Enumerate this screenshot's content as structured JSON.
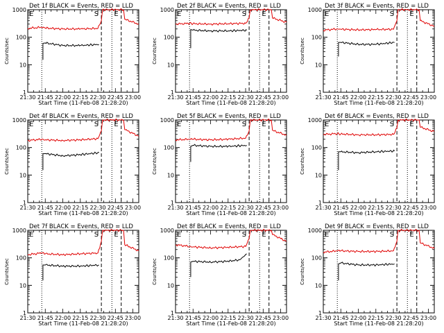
{
  "colors": {
    "events": "#000000",
    "lld": "#e00000",
    "axis": "#000000",
    "background": "#ffffff"
  },
  "chart_data": [
    {
      "type": "line",
      "title": "Det 1f BLACK = Events, RED = LLD",
      "xlabel": "Start Time (11-Feb-08 21:28:20)",
      "ylabel": "Counts/sec",
      "xlim": [
        "21:30",
        "23:05"
      ],
      "ylim": [
        1,
        1000
      ],
      "y_scale": "log",
      "x_ticks": [
        "21:30",
        "21:45",
        "22:00",
        "22:15",
        "22:30",
        "22:45",
        "23:00"
      ],
      "y_ticks": [
        "1",
        "10",
        "100",
        "1000"
      ],
      "markers": [
        {
          "time": "21:42",
          "style": "dotted",
          "label": ""
        },
        {
          "time": "22:33",
          "style": "dashed",
          "label": "S"
        },
        {
          "time": "22:42",
          "style": "dotted",
          "label": ""
        },
        {
          "time": "22:50",
          "style": "dashed",
          "label": "E"
        }
      ],
      "series": [
        {
          "name": "LLD",
          "color": "red",
          "x": [
            "21:30",
            "21:42",
            "21:45",
            "22:00",
            "22:15",
            "22:30",
            "22:33",
            "22:34",
            "22:52",
            "22:53",
            "23:05"
          ],
          "y": [
            210,
            230,
            215,
            200,
            200,
            210,
            400,
            1000,
            1000,
            450,
            300
          ]
        },
        {
          "name": "Events",
          "color": "black",
          "x": [
            "21:43",
            "21:43",
            "21:45",
            "22:00",
            "22:15",
            "22:31"
          ],
          "y": [
            15,
            60,
            62,
            50,
            50,
            55
          ]
        }
      ]
    },
    {
      "type": "line",
      "title": "Det 2f BLACK = Events, RED = LLD",
      "xlabel": "Start Time (11-Feb-08 21:28:20)",
      "ylabel": "Counts/sec",
      "xlim": [
        "21:30",
        "23:05"
      ],
      "ylim": [
        1,
        1000
      ],
      "y_scale": "log",
      "x_ticks": [
        "21:30",
        "21:45",
        "22:00",
        "22:15",
        "22:30",
        "22:45",
        "23:00"
      ],
      "y_ticks": [
        "1",
        "10",
        "100",
        "1000"
      ],
      "markers": [
        {
          "time": "21:42",
          "style": "dotted",
          "label": ""
        },
        {
          "time": "22:33",
          "style": "dashed",
          "label": "S"
        },
        {
          "time": "22:42",
          "style": "dotted",
          "label": ""
        },
        {
          "time": "22:50",
          "style": "dashed",
          "label": "E"
        }
      ],
      "series": [
        {
          "name": "LLD",
          "color": "red",
          "x": [
            "21:30",
            "21:42",
            "21:45",
            "22:00",
            "22:15",
            "22:30",
            "22:33",
            "22:34",
            "22:52",
            "22:53",
            "23:05"
          ],
          "y": [
            300,
            320,
            310,
            300,
            310,
            320,
            500,
            1000,
            1000,
            500,
            350
          ]
        },
        {
          "name": "Events",
          "color": "black",
          "x": [
            "21:43",
            "21:43",
            "21:45",
            "22:00",
            "22:15",
            "22:31"
          ],
          "y": [
            40,
            190,
            180,
            170,
            170,
            180
          ]
        }
      ]
    },
    {
      "type": "line",
      "title": "Det 3f BLACK = Events, RED = LLD",
      "xlabel": "Start Time (11-Feb-08 21:28:20)",
      "ylabel": "Counts/sec",
      "xlim": [
        "21:30",
        "23:05"
      ],
      "ylim": [
        1,
        1000
      ],
      "y_scale": "log",
      "x_ticks": [
        "21:30",
        "21:45",
        "22:00",
        "22:15",
        "22:30",
        "22:45",
        "23:00"
      ],
      "y_ticks": [
        "1",
        "10",
        "100",
        "1000"
      ],
      "markers": [
        {
          "time": "21:42",
          "style": "dotted",
          "label": ""
        },
        {
          "time": "22:33",
          "style": "dashed",
          "label": "S"
        },
        {
          "time": "22:42",
          "style": "dotted",
          "label": ""
        },
        {
          "time": "22:50",
          "style": "dashed",
          "label": "E"
        }
      ],
      "series": [
        {
          "name": "LLD",
          "color": "red",
          "x": [
            "21:30",
            "21:42",
            "21:45",
            "22:00",
            "22:15",
            "22:30",
            "22:33",
            "22:34",
            "22:52",
            "22:53",
            "23:05"
          ],
          "y": [
            180,
            200,
            195,
            185,
            190,
            195,
            400,
            1000,
            1000,
            400,
            250
          ]
        },
        {
          "name": "Events",
          "color": "black",
          "x": [
            "21:43",
            "21:43",
            "21:45",
            "22:00",
            "22:15",
            "22:31"
          ],
          "y": [
            20,
            65,
            65,
            55,
            55,
            65
          ]
        }
      ]
    },
    {
      "type": "line",
      "title": "Det 4f BLACK = Events, RED = LLD",
      "xlabel": "Start Time (11-Feb-08 21:28:20)",
      "ylabel": "Counts/sec",
      "xlim": [
        "21:30",
        "23:05"
      ],
      "ylim": [
        1,
        1000
      ],
      "y_scale": "log",
      "x_ticks": [
        "21:30",
        "21:45",
        "22:00",
        "22:15",
        "22:30",
        "22:45",
        "23:00"
      ],
      "y_ticks": [
        "1",
        "10",
        "100",
        "1000"
      ],
      "markers": [
        {
          "time": "21:42",
          "style": "dotted",
          "label": ""
        },
        {
          "time": "22:33",
          "style": "dashed",
          "label": "S"
        },
        {
          "time": "22:42",
          "style": "dotted",
          "label": ""
        },
        {
          "time": "22:50",
          "style": "dashed",
          "label": "E"
        }
      ],
      "series": [
        {
          "name": "LLD",
          "color": "red",
          "x": [
            "21:30",
            "21:42",
            "21:45",
            "22:00",
            "22:15",
            "22:30",
            "22:33",
            "22:34",
            "22:52",
            "22:53",
            "23:05"
          ],
          "y": [
            180,
            200,
            190,
            180,
            190,
            210,
            400,
            1000,
            1000,
            450,
            260
          ]
        },
        {
          "name": "Events",
          "color": "black",
          "x": [
            "21:43",
            "21:43",
            "21:45",
            "22:00",
            "22:15",
            "22:31"
          ],
          "y": [
            15,
            60,
            60,
            50,
            55,
            65
          ]
        }
      ]
    },
    {
      "type": "line",
      "title": "Det 5f BLACK = Events, RED = LLD",
      "xlabel": "Start Time (11-Feb-08 21:28:20)",
      "ylabel": "Counts/sec",
      "xlim": [
        "21:30",
        "23:05"
      ],
      "ylim": [
        1,
        1000
      ],
      "y_scale": "log",
      "x_ticks": [
        "21:30",
        "21:45",
        "22:00",
        "22:15",
        "22:30",
        "22:45",
        "23:00"
      ],
      "y_ticks": [
        "1",
        "10",
        "100",
        "1000"
      ],
      "markers": [
        {
          "time": "21:42",
          "style": "dotted",
          "label": ""
        },
        {
          "time": "22:33",
          "style": "dashed",
          "label": "S"
        },
        {
          "time": "22:42",
          "style": "dotted",
          "label": ""
        },
        {
          "time": "22:50",
          "style": "dashed",
          "label": "E"
        }
      ],
      "series": [
        {
          "name": "LLD",
          "color": "red",
          "x": [
            "21:30",
            "21:42",
            "21:45",
            "22:00",
            "22:15",
            "22:30",
            "22:33",
            "22:34",
            "22:52",
            "22:53",
            "23:05"
          ],
          "y": [
            190,
            200,
            200,
            190,
            200,
            220,
            400,
            1000,
            1000,
            420,
            280
          ]
        },
        {
          "name": "Events",
          "color": "black",
          "x": [
            "21:43",
            "21:43",
            "21:45",
            "22:00",
            "22:15",
            "22:31"
          ],
          "y": [
            30,
            110,
            120,
            110,
            110,
            120
          ]
        }
      ]
    },
    {
      "type": "line",
      "title": "Det 6f BLACK = Events, RED = LLD",
      "xlabel": "Start Time (11-Feb-08 21:28:20)",
      "ylabel": "Counts/sec",
      "xlim": [
        "21:30",
        "23:05"
      ],
      "ylim": [
        1,
        1000
      ],
      "y_scale": "log",
      "x_ticks": [
        "21:30",
        "21:45",
        "22:00",
        "22:15",
        "22:30",
        "22:45",
        "23:00"
      ],
      "y_ticks": [
        "1",
        "10",
        "100",
        "1000"
      ],
      "markers": [
        {
          "time": "21:42",
          "style": "dotted",
          "label": ""
        },
        {
          "time": "22:33",
          "style": "dashed",
          "label": "S"
        },
        {
          "time": "22:42",
          "style": "dotted",
          "label": ""
        },
        {
          "time": "22:50",
          "style": "dashed",
          "label": "E"
        }
      ],
      "series": [
        {
          "name": "LLD",
          "color": "red",
          "x": [
            "21:30",
            "21:42",
            "21:45",
            "22:00",
            "22:15",
            "22:30",
            "22:33",
            "22:34",
            "22:52",
            "22:53",
            "23:05"
          ],
          "y": [
            300,
            320,
            310,
            290,
            290,
            300,
            500,
            1000,
            1000,
            550,
            380
          ]
        },
        {
          "name": "Events",
          "color": "black",
          "x": [
            "21:43",
            "21:43",
            "21:45",
            "22:00",
            "22:15",
            "22:31"
          ],
          "y": [
            15,
            70,
            70,
            65,
            70,
            75
          ]
        }
      ]
    },
    {
      "type": "line",
      "title": "Det 7f BLACK = Events, RED = LLD",
      "xlabel": "Start Time (11-Feb-08 21:28:20)",
      "ylabel": "Counts/sec",
      "xlim": [
        "21:30",
        "23:05"
      ],
      "ylim": [
        1,
        1000
      ],
      "y_scale": "log",
      "x_ticks": [
        "21:30",
        "21:45",
        "22:00",
        "22:15",
        "22:30",
        "22:45",
        "23:00"
      ],
      "y_ticks": [
        "1",
        "10",
        "100",
        "1000"
      ],
      "markers": [
        {
          "time": "21:42",
          "style": "dotted",
          "label": ""
        },
        {
          "time": "22:33",
          "style": "dashed",
          "label": "S"
        },
        {
          "time": "22:42",
          "style": "dotted",
          "label": ""
        },
        {
          "time": "22:50",
          "style": "dashed",
          "label": "E"
        }
      ],
      "series": [
        {
          "name": "LLD",
          "color": "red",
          "x": [
            "21:30",
            "21:42",
            "21:45",
            "22:00",
            "22:15",
            "22:30",
            "22:33",
            "22:34",
            "22:52",
            "22:53",
            "23:05"
          ],
          "y": [
            130,
            150,
            140,
            130,
            140,
            150,
            400,
            1000,
            1000,
            300,
            180
          ]
        },
        {
          "name": "Events",
          "color": "black",
          "x": [
            "21:43",
            "21:43",
            "21:45",
            "22:00",
            "22:15",
            "22:31"
          ],
          "y": [
            15,
            55,
            55,
            50,
            50,
            55
          ]
        }
      ]
    },
    {
      "type": "line",
      "title": "Det 8f BLACK = Events, RED = LLD",
      "xlabel": "Start Time (11-Feb-08 21:28:20)",
      "ylabel": "Counts/sec",
      "xlim": [
        "21:30",
        "23:05"
      ],
      "ylim": [
        1,
        1000
      ],
      "y_scale": "log",
      "x_ticks": [
        "21:30",
        "21:45",
        "22:00",
        "22:15",
        "22:30",
        "22:45",
        "23:00"
      ],
      "y_ticks": [
        "1",
        "10",
        "100",
        "1000"
      ],
      "markers": [
        {
          "time": "21:42",
          "style": "dotted",
          "label": ""
        },
        {
          "time": "22:33",
          "style": "dashed",
          "label": "S"
        },
        {
          "time": "22:42",
          "style": "dotted",
          "label": ""
        },
        {
          "time": "22:50",
          "style": "dashed",
          "label": "E"
        }
      ],
      "series": [
        {
          "name": "LLD",
          "color": "red",
          "x": [
            "21:30",
            "21:42",
            "21:45",
            "22:00",
            "22:15",
            "22:30",
            "22:33",
            "22:34",
            "22:52",
            "22:53",
            "23:05"
          ],
          "y": [
            300,
            260,
            250,
            230,
            240,
            260,
            500,
            1000,
            1000,
            700,
            400
          ]
        },
        {
          "name": "Events",
          "color": "black",
          "x": [
            "21:43",
            "21:43",
            "21:45",
            "22:00",
            "22:15",
            "22:25",
            "22:31"
          ],
          "y": [
            20,
            70,
            75,
            70,
            75,
            85,
            140
          ]
        }
      ]
    },
    {
      "type": "line",
      "title": "Det 9f BLACK = Events, RED = LLD",
      "xlabel": "Start Time (11-Feb-08 21:28:20)",
      "ylabel": "Counts/sec",
      "xlim": [
        "21:30",
        "23:05"
      ],
      "ylim": [
        1,
        1000
      ],
      "y_scale": "log",
      "x_ticks": [
        "21:30",
        "21:45",
        "22:00",
        "22:15",
        "22:30",
        "22:45",
        "23:00"
      ],
      "y_ticks": [
        "1",
        "10",
        "100",
        "1000"
      ],
      "markers": [
        {
          "time": "21:42",
          "style": "dotted",
          "label": ""
        },
        {
          "time": "22:33",
          "style": "dashed",
          "label": "S"
        },
        {
          "time": "22:42",
          "style": "dotted",
          "label": ""
        },
        {
          "time": "22:50",
          "style": "dashed",
          "label": "E"
        }
      ],
      "series": [
        {
          "name": "LLD",
          "color": "red",
          "x": [
            "21:30",
            "21:42",
            "21:45",
            "22:00",
            "22:15",
            "22:30",
            "22:33",
            "22:34",
            "22:52",
            "22:53",
            "23:05"
          ],
          "y": [
            160,
            180,
            180,
            170,
            170,
            180,
            400,
            1000,
            1000,
            350,
            220
          ]
        },
        {
          "name": "Events",
          "color": "black",
          "x": [
            "21:43",
            "21:43",
            "21:45",
            "22:00",
            "22:15",
            "22:31"
          ],
          "y": [
            15,
            60,
            65,
            55,
            55,
            60
          ]
        }
      ]
    }
  ]
}
